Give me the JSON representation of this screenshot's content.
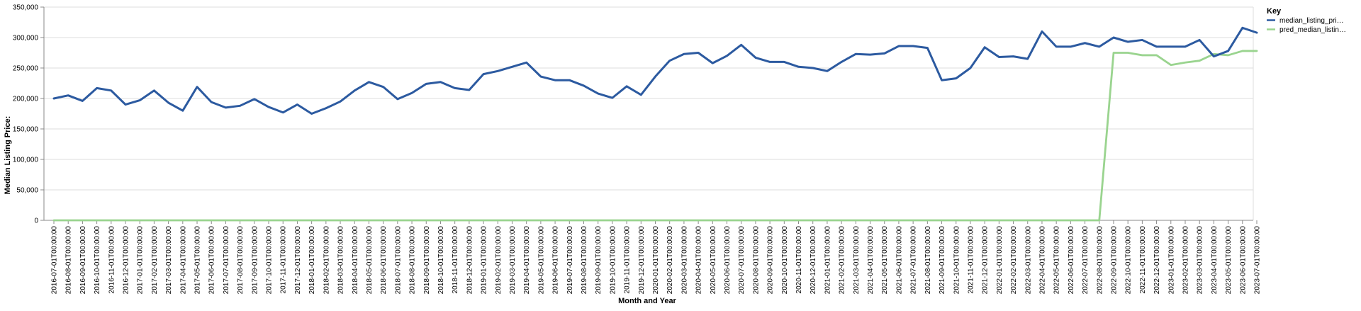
{
  "chart_data": {
    "type": "line",
    "xlabel": "Month and Year",
    "ylabel": "Median Listing Price:",
    "ylim": [
      0,
      350000
    ],
    "y_ticks": [
      "0",
      "50,000",
      "100,000",
      "150,000",
      "200,000",
      "250,000",
      "300,000",
      "350,000"
    ],
    "y_tick_values": [
      0,
      50000,
      100000,
      150000,
      200000,
      250000,
      300000,
      350000
    ],
    "grid": true,
    "legend": {
      "title": "Key",
      "placement": "top-right"
    },
    "x": [
      "2016-07-01T00:00:00",
      "2016-08-01T00:00:00",
      "2016-09-01T00:00:00",
      "2016-10-01T00:00:00",
      "2016-11-01T00:00:00",
      "2016-12-01T00:00:00",
      "2017-01-01T00:00:00",
      "2017-02-01T00:00:00",
      "2017-03-01T00:00:00",
      "2017-04-01T00:00:00",
      "2017-05-01T00:00:00",
      "2017-06-01T00:00:00",
      "2017-07-01T00:00:00",
      "2017-08-01T00:00:00",
      "2017-09-01T00:00:00",
      "2017-10-01T00:00:00",
      "2017-11-01T00:00:00",
      "2017-12-01T00:00:00",
      "2018-01-01T00:00:00",
      "2018-02-01T00:00:00",
      "2018-03-01T00:00:00",
      "2018-04-01T00:00:00",
      "2018-05-01T00:00:00",
      "2018-06-01T00:00:00",
      "2018-07-01T00:00:00",
      "2018-08-01T00:00:00",
      "2018-09-01T00:00:00",
      "2018-10-01T00:00:00",
      "2018-11-01T00:00:00",
      "2018-12-01T00:00:00",
      "2019-01-01T00:00:00",
      "2019-02-01T00:00:00",
      "2019-03-01T00:00:00",
      "2019-04-01T00:00:00",
      "2019-05-01T00:00:00",
      "2019-06-01T00:00:00",
      "2019-07-01T00:00:00",
      "2019-08-01T00:00:00",
      "2019-09-01T00:00:00",
      "2019-10-01T00:00:00",
      "2019-11-01T00:00:00",
      "2019-12-01T00:00:00",
      "2020-01-01T00:00:00",
      "2020-02-01T00:00:00",
      "2020-03-01T00:00:00",
      "2020-04-01T00:00:00",
      "2020-05-01T00:00:00",
      "2020-06-01T00:00:00",
      "2020-07-01T00:00:00",
      "2020-08-01T00:00:00",
      "2020-09-01T00:00:00",
      "2020-10-01T00:00:00",
      "2020-11-01T00:00:00",
      "2020-12-01T00:00:00",
      "2021-01-01T00:00:00",
      "2021-02-01T00:00:00",
      "2021-03-01T00:00:00",
      "2021-04-01T00:00:00",
      "2021-05-01T00:00:00",
      "2021-06-01T00:00:00",
      "2021-07-01T00:00:00",
      "2021-08-01T00:00:00",
      "2021-09-01T00:00:00",
      "2021-10-01T00:00:00",
      "2021-11-01T00:00:00",
      "2021-12-01T00:00:00",
      "2022-01-01T00:00:00",
      "2022-02-01T00:00:00",
      "2022-03-01T00:00:00",
      "2022-04-01T00:00:00",
      "2022-05-01T00:00:00",
      "2022-06-01T00:00:00",
      "2022-07-01T00:00:00",
      "2022-08-01T00:00:00",
      "2022-09-01T00:00:00",
      "2022-10-01T00:00:00",
      "2022-11-01T00:00:00",
      "2022-12-01T00:00:00",
      "2023-01-01T00:00:00",
      "2023-02-01T00:00:00",
      "2023-03-01T00:00:00",
      "2023-04-01T00:00:00",
      "2023-05-01T00:00:00",
      "2023-06-01T00:00:00",
      "2023-07-01T00:00:00"
    ],
    "series": [
      {
        "name": "median_listing_pri…",
        "color": "#2c5aa0",
        "values": [
          200000,
          205000,
          196000,
          217000,
          213000,
          190000,
          197000,
          213000,
          193000,
          180000,
          219000,
          194000,
          185000,
          188000,
          199000,
          186000,
          177000,
          190000,
          175000,
          184000,
          195000,
          213000,
          227000,
          219000,
          199000,
          209000,
          224000,
          227000,
          217000,
          214000,
          240000,
          245000,
          252000,
          259000,
          236000,
          230000,
          230000,
          221000,
          208000,
          201000,
          220000,
          206000,
          236000,
          262000,
          273000,
          275000,
          258000,
          270000,
          288000,
          267000,
          260000,
          260000,
          252000,
          250000,
          245000,
          260000,
          273000,
          272000,
          274000,
          286000,
          286000,
          283000,
          230000,
          233000,
          250000,
          284000,
          268000,
          269000,
          265000,
          310000,
          285000,
          285000,
          291000,
          285000,
          300000,
          293000,
          296000,
          285000,
          285000,
          285000,
          296000,
          269000,
          278000,
          316000,
          308000
        ]
      },
      {
        "name": "pred_median_listin…",
        "color": "#9ad48f",
        "values": [
          0,
          0,
          0,
          0,
          0,
          0,
          0,
          0,
          0,
          0,
          0,
          0,
          0,
          0,
          0,
          0,
          0,
          0,
          0,
          0,
          0,
          0,
          0,
          0,
          0,
          0,
          0,
          0,
          0,
          0,
          0,
          0,
          0,
          0,
          0,
          0,
          0,
          0,
          0,
          0,
          0,
          0,
          0,
          0,
          0,
          0,
          0,
          0,
          0,
          0,
          0,
          0,
          0,
          0,
          0,
          0,
          0,
          0,
          0,
          0,
          0,
          0,
          0,
          0,
          0,
          0,
          0,
          0,
          0,
          0,
          0,
          0,
          0,
          0,
          275000,
          275000,
          271000,
          271000,
          255000,
          259000,
          262000,
          273000,
          271000,
          278000,
          278000
        ]
      }
    ]
  }
}
